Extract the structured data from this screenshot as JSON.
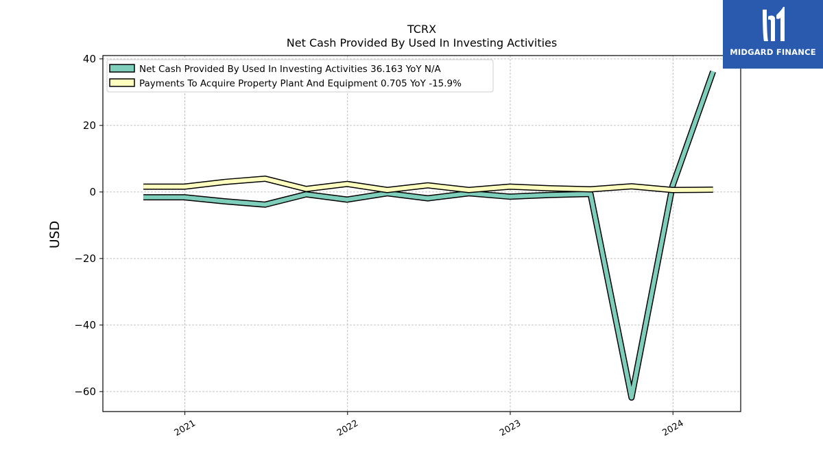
{
  "chart_data": {
    "type": "line",
    "title": "TCRX",
    "subtitle": "Net Cash Provided By Used In Investing Activities",
    "ylabel": "USD",
    "xlabel": "",
    "ylim": [
      -66,
      41
    ],
    "y_ticks": [
      40,
      20,
      0,
      -20,
      -40,
      -60
    ],
    "y_tick_labels": [
      "40",
      "20",
      "0",
      "−20",
      "−40",
      "−60"
    ],
    "x_ticks": [
      "2021",
      "2022",
      "2023",
      "2024"
    ],
    "grid": true,
    "legend_position": "top-left",
    "x": [
      "2020-09-30",
      "2020-12-31",
      "2021-03-31",
      "2021-06-30",
      "2021-09-30",
      "2021-12-31",
      "2022-03-31",
      "2022-06-30",
      "2022-09-30",
      "2022-12-31",
      "2023-03-31",
      "2023-06-30",
      "2023-09-30",
      "2023-12-31",
      "2024-03-31"
    ],
    "series": [
      {
        "name": "Net Cash Provided By Used In Investing Activities",
        "legend_label": "Net Cash Provided By Used In Investing Activities  36.163 YoY N/A",
        "color": "#7fcdbb",
        "values": [
          -1.6,
          -1.6,
          -2.8,
          -3.8,
          -0.7,
          -2.3,
          -0.4,
          -1.9,
          -0.4,
          -1.4,
          -0.9,
          -0.6,
          -61.8,
          1.8,
          36.2
        ]
      },
      {
        "name": "Payments To Acquire Property Plant And Equipment",
        "legend_label": "Payments To Acquire Property Plant And Equipment  0.705 YoY -15.9%",
        "color": "#ffffbf",
        "values": [
          1.6,
          1.6,
          3.0,
          4.0,
          0.9,
          2.4,
          0.6,
          2.0,
          0.6,
          1.6,
          1.1,
          0.8,
          1.7,
          0.6,
          0.7
        ]
      }
    ]
  },
  "logo": {
    "text": "MIDGARD FINANCE",
    "background": "#2a5aad"
  }
}
